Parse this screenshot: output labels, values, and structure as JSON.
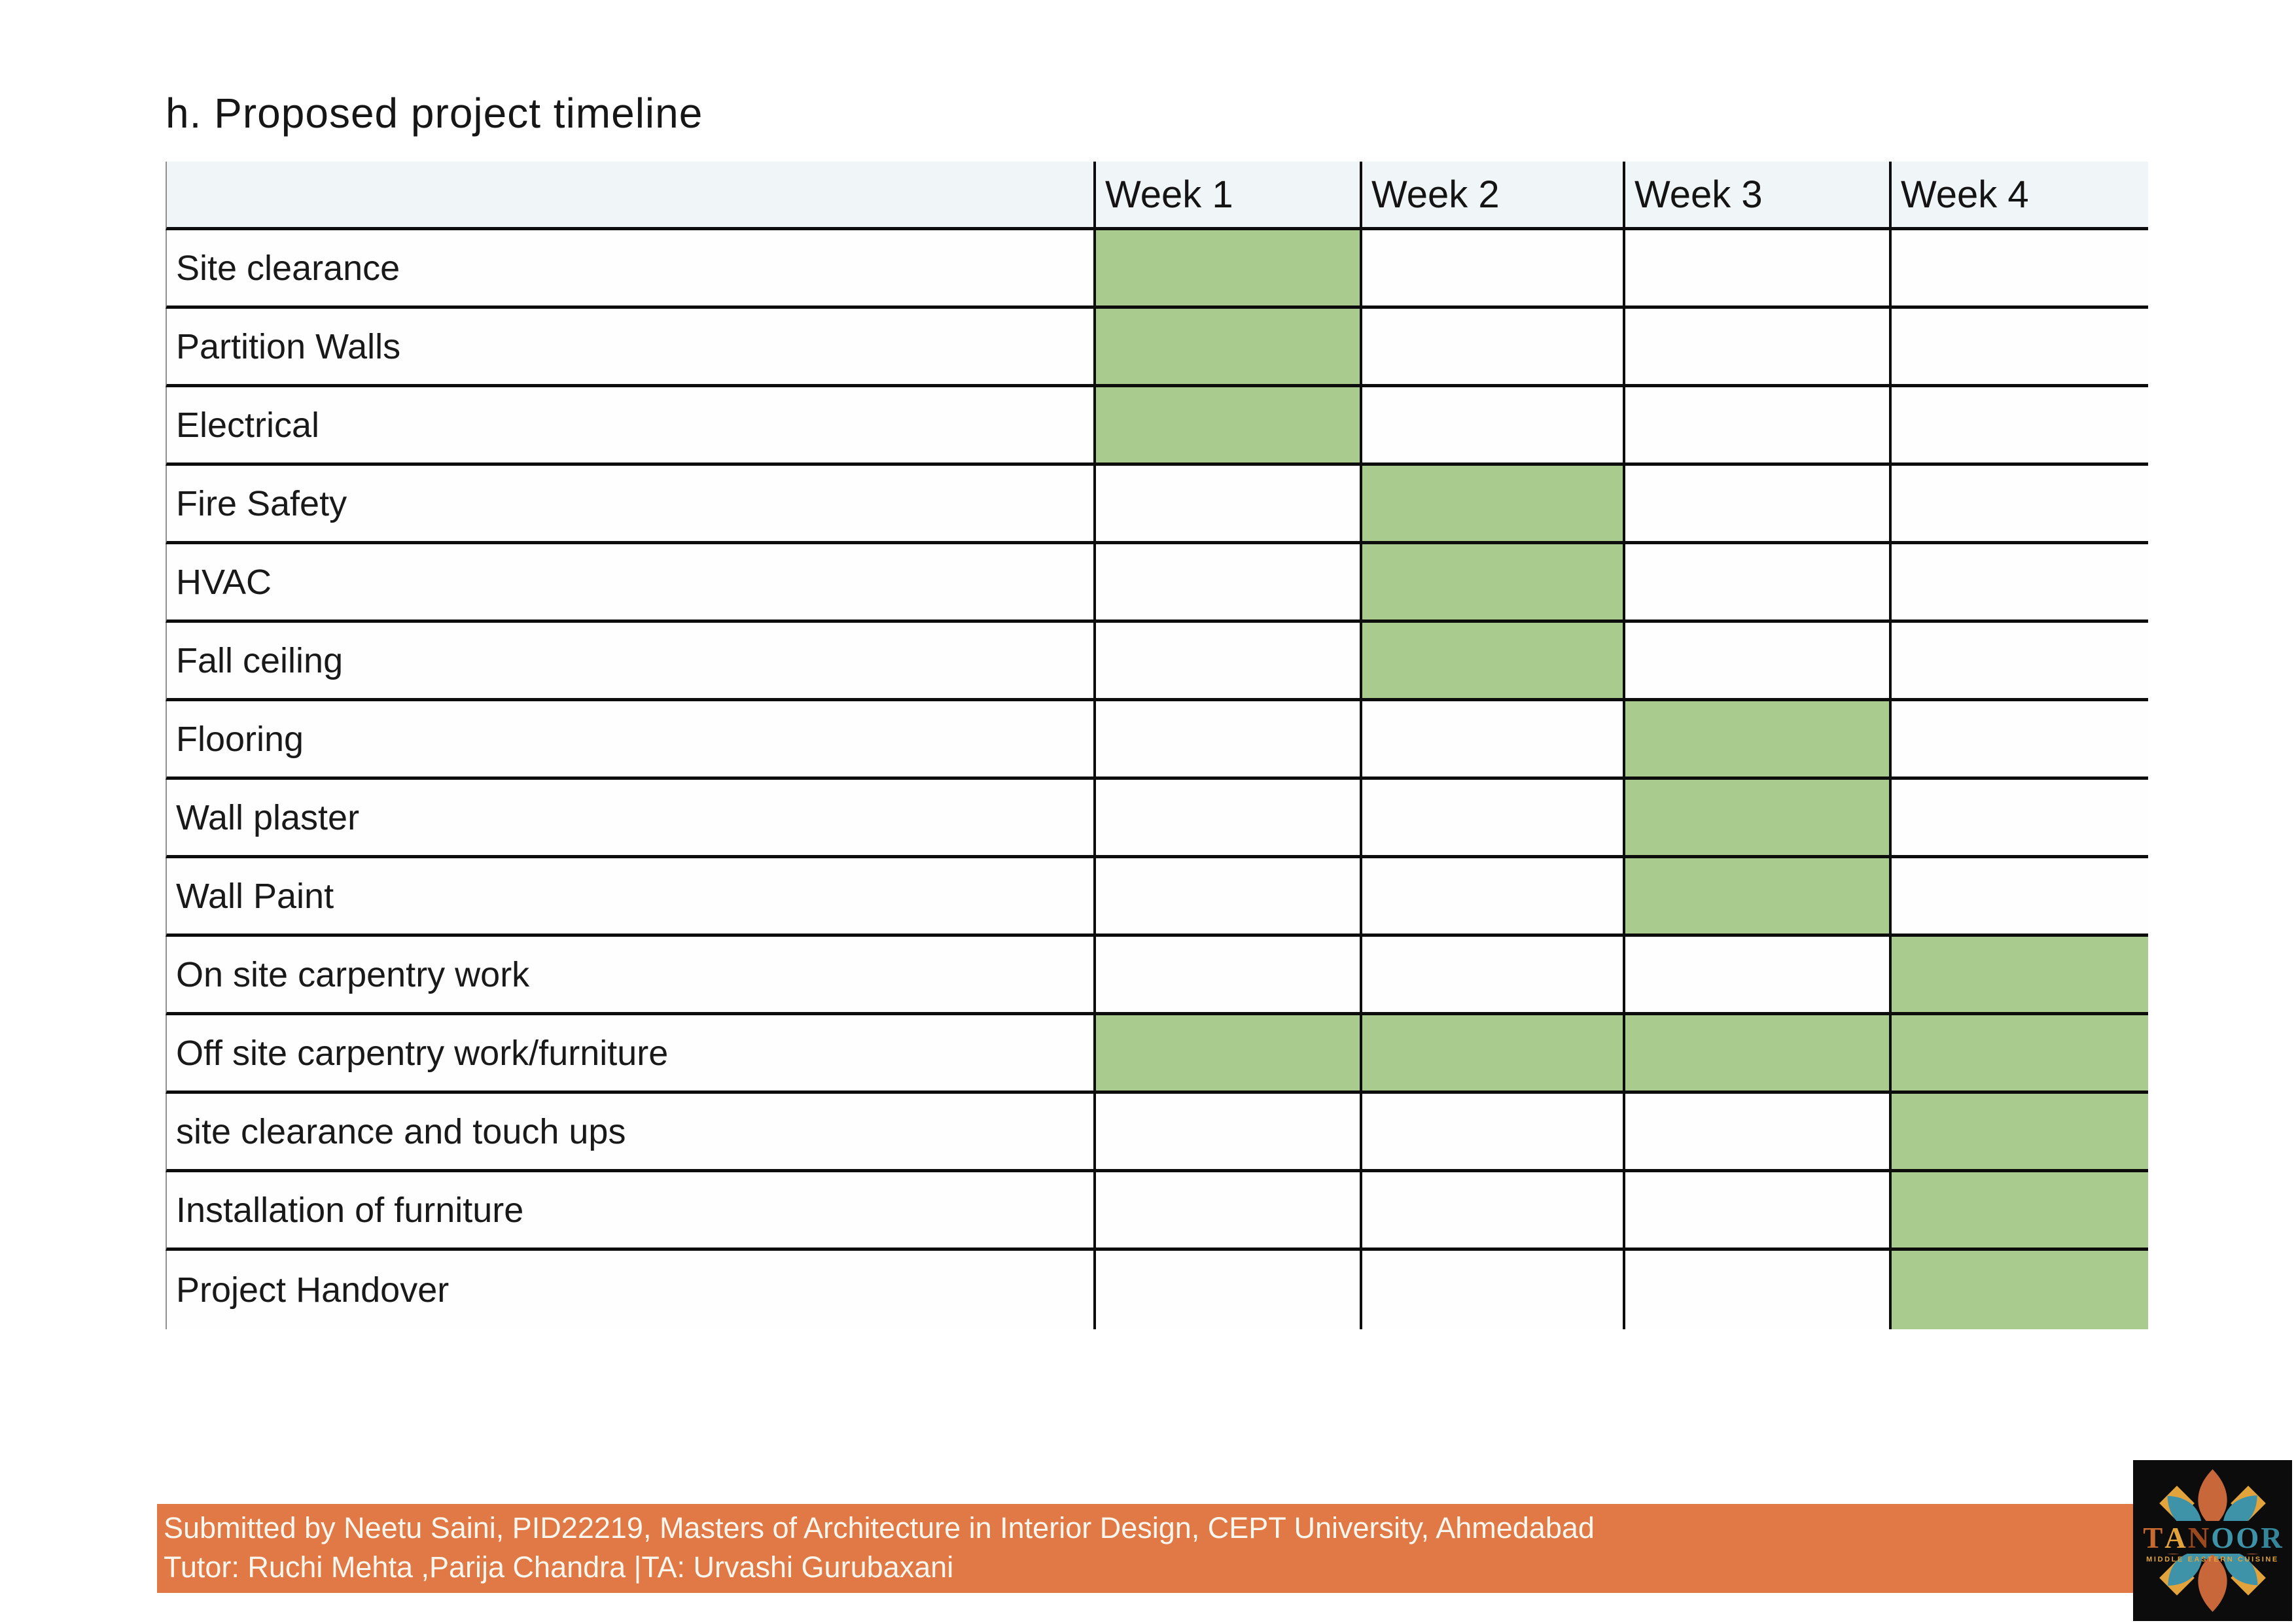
{
  "page": {
    "title": "h. Proposed project timeline"
  },
  "table": {
    "week_headers": [
      "Week 1",
      "Week 2",
      "Week 3",
      "Week 4"
    ],
    "rows": [
      {
        "label": "Site clearance",
        "weeks": [
          1
        ]
      },
      {
        "label": "Partition Walls",
        "weeks": [
          1
        ]
      },
      {
        "label": "Electrical",
        "weeks": [
          1
        ]
      },
      {
        "label": "Fire Safety",
        "weeks": [
          2
        ]
      },
      {
        "label": "HVAC",
        "weeks": [
          2
        ]
      },
      {
        "label": "Fall ceiling",
        "weeks": [
          2
        ]
      },
      {
        "label": "Flooring",
        "weeks": [
          3
        ]
      },
      {
        "label": "Wall plaster",
        "weeks": [
          3
        ]
      },
      {
        "label": "Wall Paint",
        "weeks": [
          3
        ]
      },
      {
        "label": "On site carpentry work",
        "weeks": [
          4
        ]
      },
      {
        "label": "Off site carpentry work/furniture",
        "weeks": [
          1,
          2,
          3,
          4
        ]
      },
      {
        "label": "site clearance and touch ups",
        "weeks": [
          4
        ]
      },
      {
        "label": "Installation of furniture",
        "weeks": [
          4
        ]
      },
      {
        "label": "Project Handover",
        "weeks": [
          4
        ]
      }
    ]
  },
  "footer": {
    "line1": "Submitted by Neetu Saini, PID22219, Masters of Architecture in Interior Design, CEPT University, Ahmedabad",
    "line2": "Tutor: Ruchi Mehta ,Parija Chandra |TA: Urvashi Gurubaxani"
  },
  "logo": {
    "brand": "TANOOR",
    "tagline": "MIDDLE EASTERN CUISINE",
    "letters": [
      {
        "ch": "T",
        "color": "#c96b31"
      },
      {
        "ch": "A",
        "color": "#e2a33c"
      },
      {
        "ch": "N",
        "color": "#9c4a1d"
      },
      {
        "ch": "O",
        "color": "#3f93a8"
      },
      {
        "ch": "O",
        "color": "#3f93a8"
      },
      {
        "ch": "R",
        "color": "#35859b"
      }
    ]
  },
  "colors": {
    "text": "#161616",
    "gantt-green": "#a9cb8d",
    "header-bg": "#f0f5f7",
    "grid-line": "#0d0d0d",
    "table-left-border": "#8f8f8f",
    "footer-orange": "#e07946",
    "footer-text": "#fbf6ee",
    "logo-bg": "#0c0c0c",
    "logo-orange": "#c8683a",
    "logo-teal": "#3f93a8",
    "logo-yellow": "#e2a33c"
  }
}
